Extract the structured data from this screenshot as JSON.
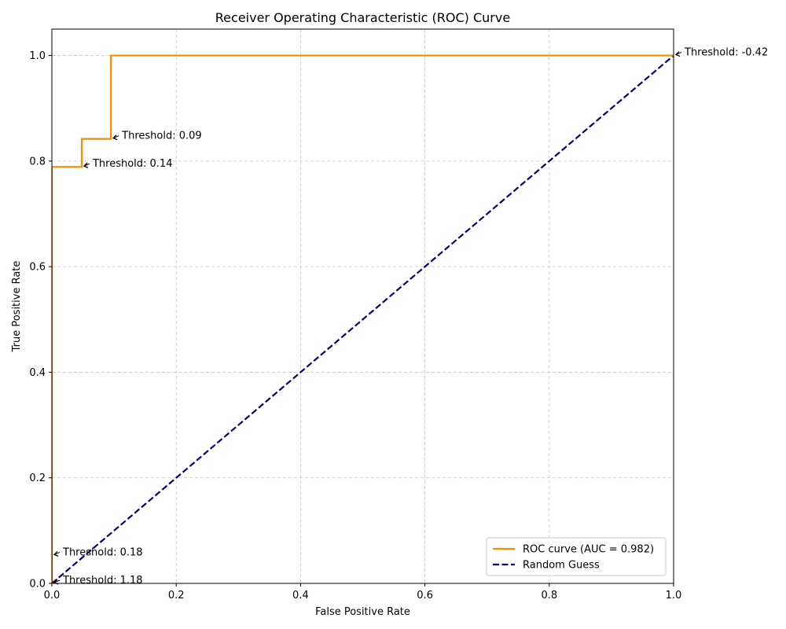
{
  "chart_data": {
    "type": "line",
    "title": "Receiver Operating Characteristic (ROC) Curve",
    "xlabel": "False Positive Rate",
    "ylabel": "True Positive Rate",
    "xlim": [
      0.0,
      1.0
    ],
    "ylim": [
      0.0,
      1.05
    ],
    "x_ticks": [
      0.0,
      0.2,
      0.4,
      0.6,
      0.8,
      1.0
    ],
    "y_ticks": [
      0.0,
      0.2,
      0.4,
      0.6,
      0.8,
      1.0
    ],
    "x_tick_labels": [
      "0.0",
      "0.2",
      "0.4",
      "0.6",
      "0.8",
      "1.0"
    ],
    "y_tick_labels": [
      "0.0",
      "0.2",
      "0.4",
      "0.6",
      "0.8",
      "1.0"
    ],
    "grid": true,
    "legend_position": "lower-right",
    "series": [
      {
        "name": "ROC curve (AUC = 0.982)",
        "color": "#ff8c00",
        "style": "solid",
        "x": [
          0.0,
          0.0,
          0.0,
          0.048,
          0.048,
          0.095,
          0.095,
          1.0
        ],
        "y": [
          0.0,
          0.053,
          0.789,
          0.789,
          0.842,
          0.842,
          1.0,
          1.0
        ]
      },
      {
        "name": "Random Guess",
        "color": "#000080",
        "style": "dashed",
        "x": [
          0.0,
          1.0
        ],
        "y": [
          0.0,
          1.0
        ]
      }
    ],
    "annotations": [
      {
        "text": "Threshold: 1.18",
        "x": 0.0,
        "y": 0.0
      },
      {
        "text": "Threshold: 0.18",
        "x": 0.0,
        "y": 0.053
      },
      {
        "text": "Threshold: 0.14",
        "x": 0.048,
        "y": 0.789
      },
      {
        "text": "Threshold: 0.09",
        "x": 0.095,
        "y": 0.842
      },
      {
        "text": "Threshold: -0.42",
        "x": 1.0,
        "y": 1.0
      }
    ]
  }
}
